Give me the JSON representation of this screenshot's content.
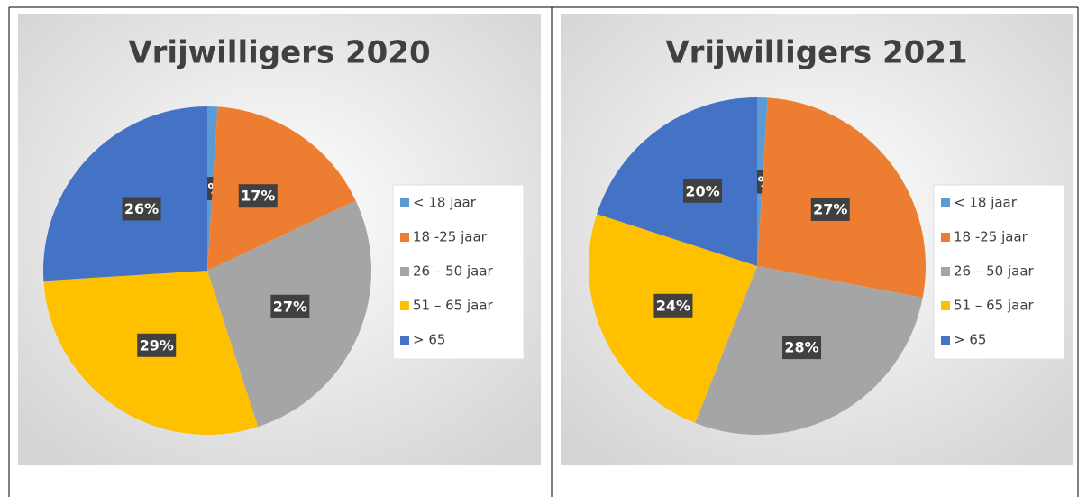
{
  "chart_data": [
    {
      "type": "pie",
      "title": "Vrijwilligers 2020",
      "categories": [
        "< 18 jaar",
        "18 -25 jaar",
        "26 – 50 jaar",
        "51 – 65 jaar",
        "> 65"
      ],
      "values": [
        1,
        17,
        27,
        29,
        26
      ],
      "value_labels": [
        "1%",
        "17%",
        "27%",
        "29%",
        "26%"
      ],
      "colors": [
        "#5b9bd5",
        "#ed7d31",
        "#a5a5a5",
        "#ffc000",
        "#4472c4"
      ],
      "legend": "right"
    },
    {
      "type": "pie",
      "title": "Vrijwilligers 2021",
      "categories": [
        "< 18 jaar",
        "18 -25 jaar",
        "26 – 50 jaar",
        "51 – 65 jaar",
        "> 65"
      ],
      "values": [
        1,
        27,
        28,
        24,
        20
      ],
      "value_labels": [
        "1%",
        "27%",
        "28%",
        "24%",
        "20%"
      ],
      "colors": [
        "#5b9bd5",
        "#ed7d31",
        "#a5a5a5",
        "#ffc000",
        "#4472c4"
      ],
      "legend": "right"
    }
  ]
}
